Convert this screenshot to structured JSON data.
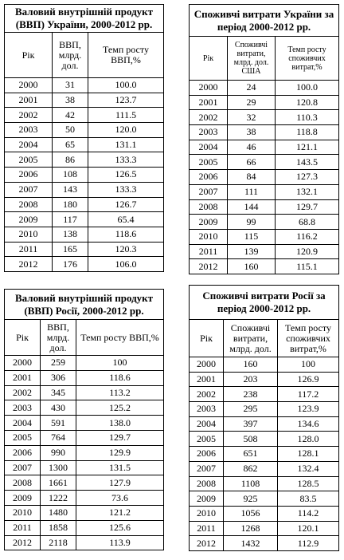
{
  "tables": [
    {
      "title": "Валовий внутрішній продукт (ВВП) України, 2000-2012 рр.",
      "headers": [
        "Рік",
        "ВВП, млрд. дол.",
        "Темп росту ВВП,%"
      ],
      "rows": [
        [
          "2000",
          "31",
          "100.0"
        ],
        [
          "2001",
          "38",
          "123.7"
        ],
        [
          "2002",
          "42",
          "111.5"
        ],
        [
          "2003",
          "50",
          "120.0"
        ],
        [
          "2004",
          "65",
          "131.1"
        ],
        [
          "2005",
          "86",
          "133.3"
        ],
        [
          "2006",
          "108",
          "126.5"
        ],
        [
          "2007",
          "143",
          "133.3"
        ],
        [
          "2008",
          "180",
          "126.7"
        ],
        [
          "2009",
          "117",
          "65.4"
        ],
        [
          "2010",
          "138",
          "118.6"
        ],
        [
          "2011",
          "165",
          "120.3"
        ],
        [
          "2012",
          "176",
          "106.0"
        ]
      ]
    },
    {
      "title": "Споживчі витрати України за період 2000-2012 рр.",
      "headers": [
        "Рік",
        "Споживчі витрати, млрд. дол. США",
        "Темп росту споживчих витрат,%"
      ],
      "rows": [
        [
          "2000",
          "24",
          "100.0"
        ],
        [
          "2001",
          "29",
          "120.8"
        ],
        [
          "2002",
          "32",
          "110.3"
        ],
        [
          "2003",
          "38",
          "118.8"
        ],
        [
          "2004",
          "46",
          "121.1"
        ],
        [
          "2005",
          "66",
          "143.5"
        ],
        [
          "2006",
          "84",
          "127.3"
        ],
        [
          "2007",
          "111",
          "132.1"
        ],
        [
          "2008",
          "144",
          "129.7"
        ],
        [
          "2009",
          "99",
          "68.8"
        ],
        [
          "2010",
          "115",
          "116.2"
        ],
        [
          "2011",
          "139",
          "120.9"
        ],
        [
          "2012",
          "160",
          "115.1"
        ]
      ]
    },
    {
      "title": "Валовий внутрішній продукт (ВВП) Росії, 2000-2012 рр.",
      "headers": [
        "Рік",
        "ВВП, млрд. дол.",
        "Темп росту ВВП,%"
      ],
      "rows": [
        [
          "2000",
          "259",
          "100"
        ],
        [
          "2001",
          "306",
          "118.6"
        ],
        [
          "2002",
          "345",
          "113.2"
        ],
        [
          "2003",
          "430",
          "125.2"
        ],
        [
          "2004",
          "591",
          "138.0"
        ],
        [
          "2005",
          "764",
          "129.7"
        ],
        [
          "2006",
          "990",
          "129.9"
        ],
        [
          "2007",
          "1300",
          "131.5"
        ],
        [
          "2008",
          "1661",
          "127.9"
        ],
        [
          "2009",
          "1222",
          "73.6"
        ],
        [
          "2010",
          "1480",
          "121.2"
        ],
        [
          "2011",
          "1858",
          "125.6"
        ],
        [
          "2012",
          "2118",
          "113.9"
        ]
      ]
    },
    {
      "title": "Споживчі витрати Росії за період 2000-2012 рр.",
      "headers": [
        "Рік",
        "Споживчі витрати, млрд. дол.",
        "Темп росту споживчих витрат,%"
      ],
      "rows": [
        [
          "2000",
          "160",
          "100"
        ],
        [
          "2001",
          "203",
          "126.9"
        ],
        [
          "2002",
          "238",
          "117.2"
        ],
        [
          "2003",
          "295",
          "123.9"
        ],
        [
          "2004",
          "397",
          "134.6"
        ],
        [
          "2005",
          "508",
          "128.0"
        ],
        [
          "2006",
          "651",
          "128.1"
        ],
        [
          "2007",
          "862",
          "132.4"
        ],
        [
          "2008",
          "1108",
          "128.5"
        ],
        [
          "2009",
          "925",
          "83.5"
        ],
        [
          "2010",
          "1056",
          "114.2"
        ],
        [
          "2011",
          "1268",
          "120.1"
        ],
        [
          "2012",
          "1432",
          "112.9"
        ]
      ]
    }
  ]
}
